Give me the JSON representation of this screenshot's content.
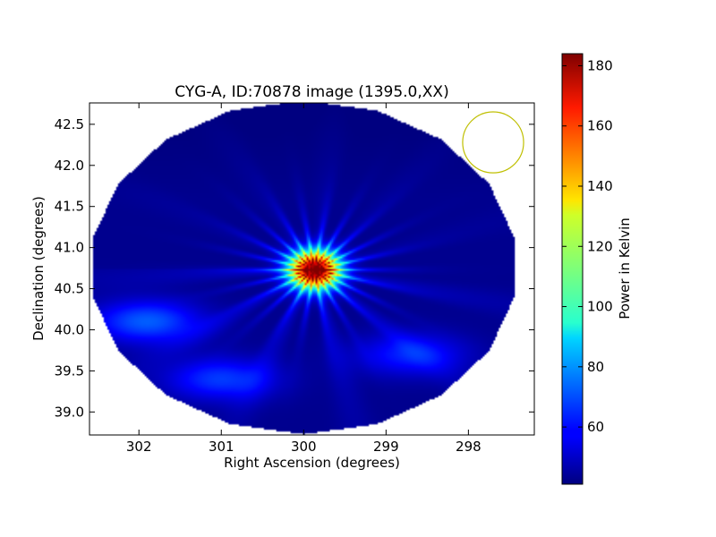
{
  "chart_data": {
    "type": "heatmap",
    "title": "CYG-A, ID:70878 image (1395.0,XX)",
    "xlabel": "Right Ascension (degrees)",
    "ylabel": "Declination (degrees)",
    "x_ticks": [
      "302",
      "301",
      "300",
      "299",
      "298"
    ],
    "y_ticks": [
      "39.0",
      "39.5",
      "40.0",
      "40.5",
      "41.0",
      "41.5",
      "42.0",
      "42.5"
    ],
    "xlim": [
      302.6,
      297.2
    ],
    "ylim": [
      38.72,
      42.76
    ],
    "x_inverted": true,
    "grid": false,
    "colormap": "jet",
    "colorbar": {
      "label": "Power in Kelvin",
      "min": 41,
      "max": 184,
      "ticks": [
        "60",
        "80",
        "100",
        "120",
        "140",
        "160",
        "180"
      ]
    },
    "source": {
      "ra": 299.87,
      "dec": 40.73,
      "peak": 184,
      "core_radius_deg": 0.2,
      "spokes": 22
    },
    "background_level": 43,
    "field_edge": "polygon",
    "sidelobes": [
      {
        "ra": 301.9,
        "dec": 40.1,
        "level": 72
      },
      {
        "ra": 301.0,
        "dec": 39.4,
        "level": 67
      },
      {
        "ra": 298.7,
        "dec": 39.7,
        "level": 64
      }
    ],
    "beam_circle": {
      "ra": 297.7,
      "dec": 42.28,
      "radius_deg": 0.37,
      "color": "#bfbf00"
    }
  }
}
